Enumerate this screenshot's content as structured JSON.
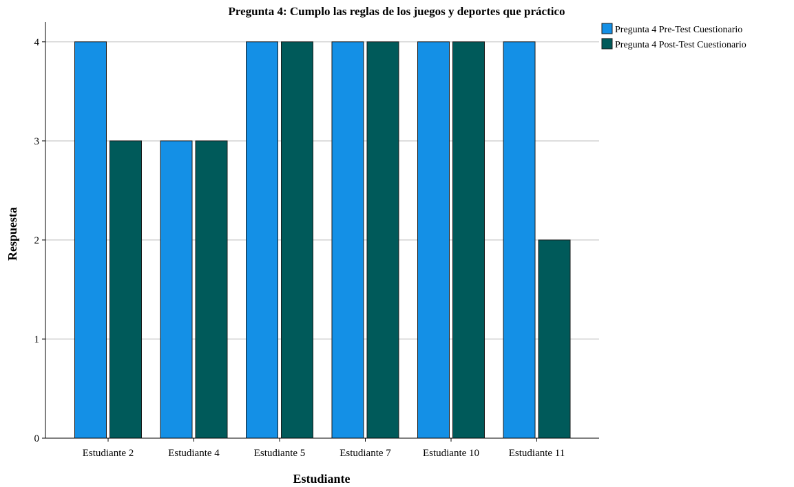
{
  "chart_data": {
    "type": "bar",
    "title": "Pregunta 4: Cumplo las reglas de los juegos y deportes que práctico",
    "xlabel": "Estudiante",
    "ylabel": "Respuesta",
    "categories": [
      "Estudiante 2",
      "Estudiante 4",
      "Estudiante 5",
      "Estudiante 7",
      "Estudiante 10",
      "Estudiante 11"
    ],
    "series": [
      {
        "name": "Pregunta 4 Pre-Test Cuestionario",
        "color": "#1490e6",
        "values": [
          4,
          3,
          4,
          4,
          4,
          4
        ]
      },
      {
        "name": "Pregunta 4 Post-Test Cuestionario",
        "color": "#005a5a",
        "values": [
          3,
          3,
          4,
          4,
          4,
          2
        ]
      }
    ],
    "ylim": [
      0,
      4.2
    ],
    "yticks": [
      0,
      1,
      2,
      3,
      4
    ],
    "grid": true,
    "legend_position": "top-right"
  }
}
